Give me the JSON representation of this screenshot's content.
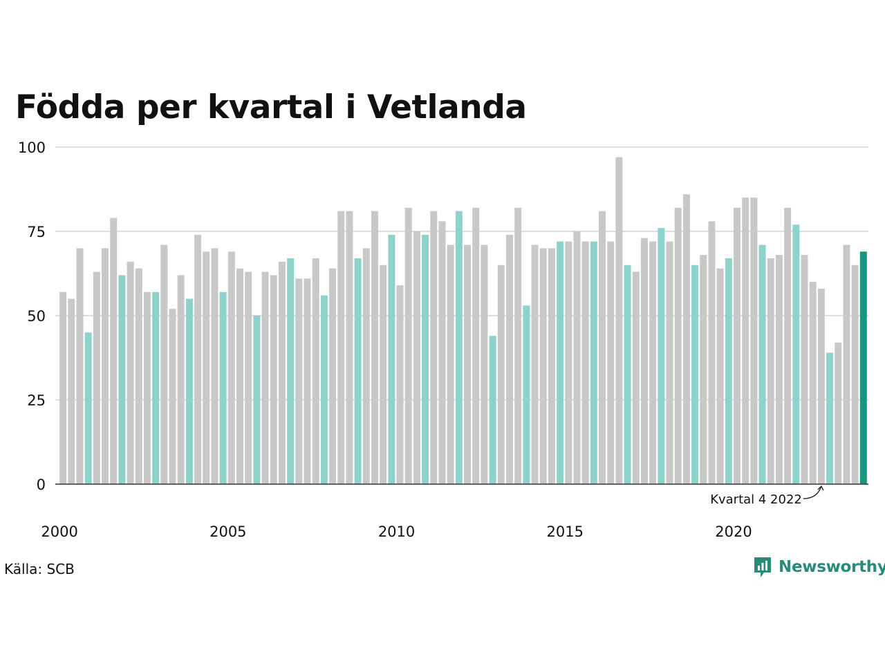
{
  "title": "Födda per kvartal i Vetlanda",
  "source": "Källa: SCB",
  "brand": "Newsworthy",
  "colors": {
    "bar": "#c8c8c8",
    "highlight_quarter": "#8dd3cb",
    "latest": "#1a9582",
    "grid": "#dddddd",
    "axis": "#333333",
    "brand": "#2a8a7a"
  },
  "chart_data": {
    "type": "bar",
    "title": "Födda per kvartal i Vetlanda",
    "xlabel": "",
    "ylabel": "",
    "ylim": [
      0,
      100
    ],
    "yticks": [
      0,
      25,
      50,
      75,
      100
    ],
    "xtick_labels": [
      "2000",
      "2005",
      "2010",
      "2015",
      "2020"
    ],
    "start": "2000 Q1",
    "grid": true,
    "values": [
      57,
      55,
      70,
      45,
      63,
      70,
      79,
      62,
      66,
      64,
      57,
      57,
      71,
      52,
      62,
      55,
      74,
      69,
      70,
      57,
      69,
      64,
      63,
      50,
      63,
      62,
      66,
      67,
      61,
      61,
      67,
      56,
      64,
      81,
      81,
      67,
      70,
      81,
      65,
      74,
      59,
      82,
      75,
      74,
      81,
      78,
      71,
      81,
      71,
      82,
      71,
      44,
      65,
      74,
      82,
      53,
      71,
      70,
      70,
      72,
      72,
      75,
      72,
      72,
      81,
      72,
      97,
      65,
      63,
      73,
      72,
      76,
      72,
      82,
      86,
      65,
      68,
      78,
      64,
      67,
      82,
      85,
      85,
      71,
      67,
      68,
      82,
      77,
      68,
      60,
      58,
      39,
      42,
      71,
      65,
      69
    ],
    "highlighted": "Kvartal 4 each year",
    "annotation": {
      "label": "Kvartal 4 2022",
      "quarter": "2022 Q4"
    }
  }
}
